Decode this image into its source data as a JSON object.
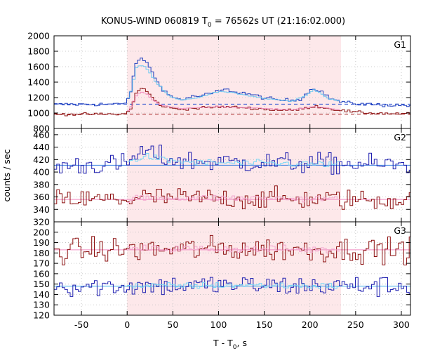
{
  "title": {
    "prefix": "KONUS-WIND 060819 T",
    "subscript": "0",
    "suffix": " = 76562s UT (21:16:02.000)"
  },
  "chart_data": {
    "type": "line",
    "style": "step",
    "x_axis": {
      "label_prefix": "T - T",
      "label_subscript": "0",
      "label_suffix": ", s",
      "range": [
        -80,
        310
      ],
      "ticks": [
        -50,
        0,
        50,
        100,
        150,
        200,
        250,
        300
      ],
      "tick_labels": [
        "-50",
        "0",
        "50",
        "100",
        "150",
        "200",
        "250",
        "300"
      ]
    },
    "y_label": "counts / sec",
    "shaded_interval": {
      "x0": 0,
      "x1": 234,
      "color": "#fde8ea"
    },
    "bin_width": 2.944,
    "panels": [
      {
        "label": "G1",
        "ylim": [
          800,
          2000
        ],
        "ticks": [
          800,
          1000,
          1200,
          1400,
          1600,
          1800,
          2000
        ],
        "tick_labels": [
          "800",
          "1000",
          "1200",
          "1400",
          "1600",
          "1800",
          "2000"
        ],
        "series": [
          {
            "color": "#1e3fbf",
            "background": 1115,
            "background_color": "#2a4fd0",
            "noise": 14,
            "keypoints": [
              [
                -80,
                1110
              ],
              [
                -5,
                1115
              ],
              [
                0,
                1150
              ],
              [
                5,
                1330
              ],
              [
                10,
                1660
              ],
              [
                15,
                1700
              ],
              [
                20,
                1680
              ],
              [
                25,
                1600
              ],
              [
                30,
                1450
              ],
              [
                35,
                1380
              ],
              [
                40,
                1300
              ],
              [
                45,
                1240
              ],
              [
                50,
                1200
              ],
              [
                60,
                1175
              ],
              [
                70,
                1210
              ],
              [
                80,
                1220
              ],
              [
                90,
                1245
              ],
              [
                95,
                1260
              ],
              [
                100,
                1290
              ],
              [
                110,
                1300
              ],
              [
                120,
                1270
              ],
              [
                130,
                1255
              ],
              [
                140,
                1225
              ],
              [
                150,
                1200
              ],
              [
                160,
                1175
              ],
              [
                170,
                1165
              ],
              [
                180,
                1165
              ],
              [
                190,
                1185
              ],
              [
                195,
                1240
              ],
              [
                200,
                1290
              ],
              [
                205,
                1320
              ],
              [
                210,
                1300
              ],
              [
                215,
                1260
              ],
              [
                220,
                1200
              ],
              [
                230,
                1160
              ],
              [
                240,
                1130
              ],
              [
                260,
                1115
              ],
              [
                280,
                1105
              ],
              [
                300,
                1100
              ],
              [
                310,
                1100
              ]
            ],
            "source_color": "#6ec8f0",
            "source_keypoints": [
              [
                0,
                1155
              ],
              [
                5,
                1300
              ],
              [
                10,
                1580
              ],
              [
                15,
                1620
              ],
              [
                20,
                1600
              ],
              [
                25,
                1520
              ],
              [
                30,
                1420
              ],
              [
                35,
                1360
              ],
              [
                40,
                1290
              ],
              [
                45,
                1230
              ],
              [
                50,
                1195
              ],
              [
                60,
                1165
              ],
              [
                80,
                1205
              ],
              [
                100,
                1280
              ],
              [
                120,
                1255
              ],
              [
                150,
                1190
              ],
              [
                180,
                1155
              ],
              [
                195,
                1225
              ],
              [
                205,
                1305
              ],
              [
                220,
                1190
              ],
              [
                234,
                1145
              ]
            ]
          },
          {
            "color": "#8c0f0f",
            "background": 985,
            "background_color": "#a01818",
            "noise": 10,
            "keypoints": [
              [
                -80,
                985
              ],
              [
                -5,
                985
              ],
              [
                0,
                1000
              ],
              [
                5,
                1080
              ],
              [
                10,
                1260
              ],
              [
                15,
                1320
              ],
              [
                20,
                1300
              ],
              [
                25,
                1240
              ],
              [
                30,
                1160
              ],
              [
                35,
                1120
              ],
              [
                40,
                1080
              ],
              [
                50,
                1060
              ],
              [
                60,
                1050
              ],
              [
                80,
                1065
              ],
              [
                100,
                1080
              ],
              [
                120,
                1075
              ],
              [
                140,
                1060
              ],
              [
                160,
                1040
              ],
              [
                180,
                1035
              ],
              [
                195,
                1060
              ],
              [
                205,
                1090
              ],
              [
                215,
                1070
              ],
              [
                230,
                1040
              ],
              [
                250,
                1010
              ],
              [
                280,
                995
              ],
              [
                310,
                990
              ]
            ],
            "source_color": "#f28fc0",
            "source_keypoints": [
              [
                0,
                1005
              ],
              [
                5,
                1090
              ],
              [
                10,
                1220
              ],
              [
                15,
                1270
              ],
              [
                20,
                1260
              ],
              [
                25,
                1210
              ],
              [
                30,
                1150
              ],
              [
                40,
                1090
              ],
              [
                60,
                1060
              ],
              [
                100,
                1085
              ],
              [
                140,
                1065
              ],
              [
                180,
                1040
              ],
              [
                205,
                1085
              ],
              [
                234,
                1040
              ]
            ]
          }
        ]
      },
      {
        "label": "G2",
        "ylim": [
          320,
          470
        ],
        "ticks": [
          320,
          340,
          360,
          380,
          400,
          420,
          440,
          460
        ],
        "tick_labels": [
          "320",
          "340",
          "360",
          "380",
          "400",
          "420",
          "440",
          "460"
        ],
        "series": [
          {
            "color": "#2020b0",
            "background": 411,
            "background_color": "#3a7fe0",
            "noise": 10,
            "keypoints": [
              [
                -80,
                410
              ],
              [
                0,
                412
              ],
              [
                5,
                420
              ],
              [
                10,
                428
              ],
              [
                20,
                432
              ],
              [
                30,
                428
              ],
              [
                40,
                422
              ],
              [
                60,
                418
              ],
              [
                100,
                416
              ],
              [
                200,
                414
              ],
              [
                310,
                411
              ]
            ],
            "source_color": "#7ad8f5",
            "source_keypoints": [
              [
                0,
                413
              ],
              [
                10,
                422
              ],
              [
                25,
                425
              ],
              [
                40,
                419
              ],
              [
                80,
                415
              ],
              [
                150,
                414
              ],
              [
                234,
                412
              ]
            ]
          },
          {
            "color": "#8c0f0f",
            "background": 356,
            "background_color": "#f08cc0",
            "noise": 10,
            "keypoints": [
              [
                -80,
                355
              ],
              [
                0,
                356
              ],
              [
                20,
                360
              ],
              [
                60,
                358
              ],
              [
                150,
                357
              ],
              [
                310,
                355
              ]
            ],
            "source_color": "#f4a8d0",
            "source_keypoints": [
              [
                0,
                357
              ],
              [
                40,
                359
              ],
              [
                120,
                358
              ],
              [
                234,
                357
              ]
            ]
          }
        ]
      },
      {
        "label": "G3",
        "ylim": [
          120,
          210
        ],
        "ticks": [
          120,
          130,
          140,
          150,
          160,
          170,
          180,
          190,
          200
        ],
        "tick_labels": [
          "120",
          "130",
          "140",
          "150",
          "160",
          "170",
          "180",
          "190",
          "200"
        ],
        "series": [
          {
            "color": "#8c0f0f",
            "background": 183,
            "background_color": "#f08cc0",
            "noise": 7,
            "keypoints": [
              [
                -80,
                182
              ],
              [
                0,
                183
              ],
              [
                100,
                184
              ],
              [
                200,
                183
              ],
              [
                310,
                183
              ]
            ],
            "source_color": "#f4a8d0",
            "source_keypoints": [
              [
                0,
                184
              ],
              [
                120,
                184
              ],
              [
                234,
                183
              ]
            ]
          },
          {
            "color": "#2020b0",
            "background": 148,
            "background_color": "#3aa8e8",
            "noise": 6,
            "keypoints": [
              [
                -80,
                148
              ],
              [
                0,
                148
              ],
              [
                100,
                149
              ],
              [
                200,
                148
              ],
              [
                310,
                148
              ]
            ],
            "source_color": "#7ad8f5",
            "source_keypoints": [
              [
                0,
                148
              ],
              [
                120,
                149
              ],
              [
                234,
                148
              ]
            ]
          }
        ]
      }
    ]
  }
}
